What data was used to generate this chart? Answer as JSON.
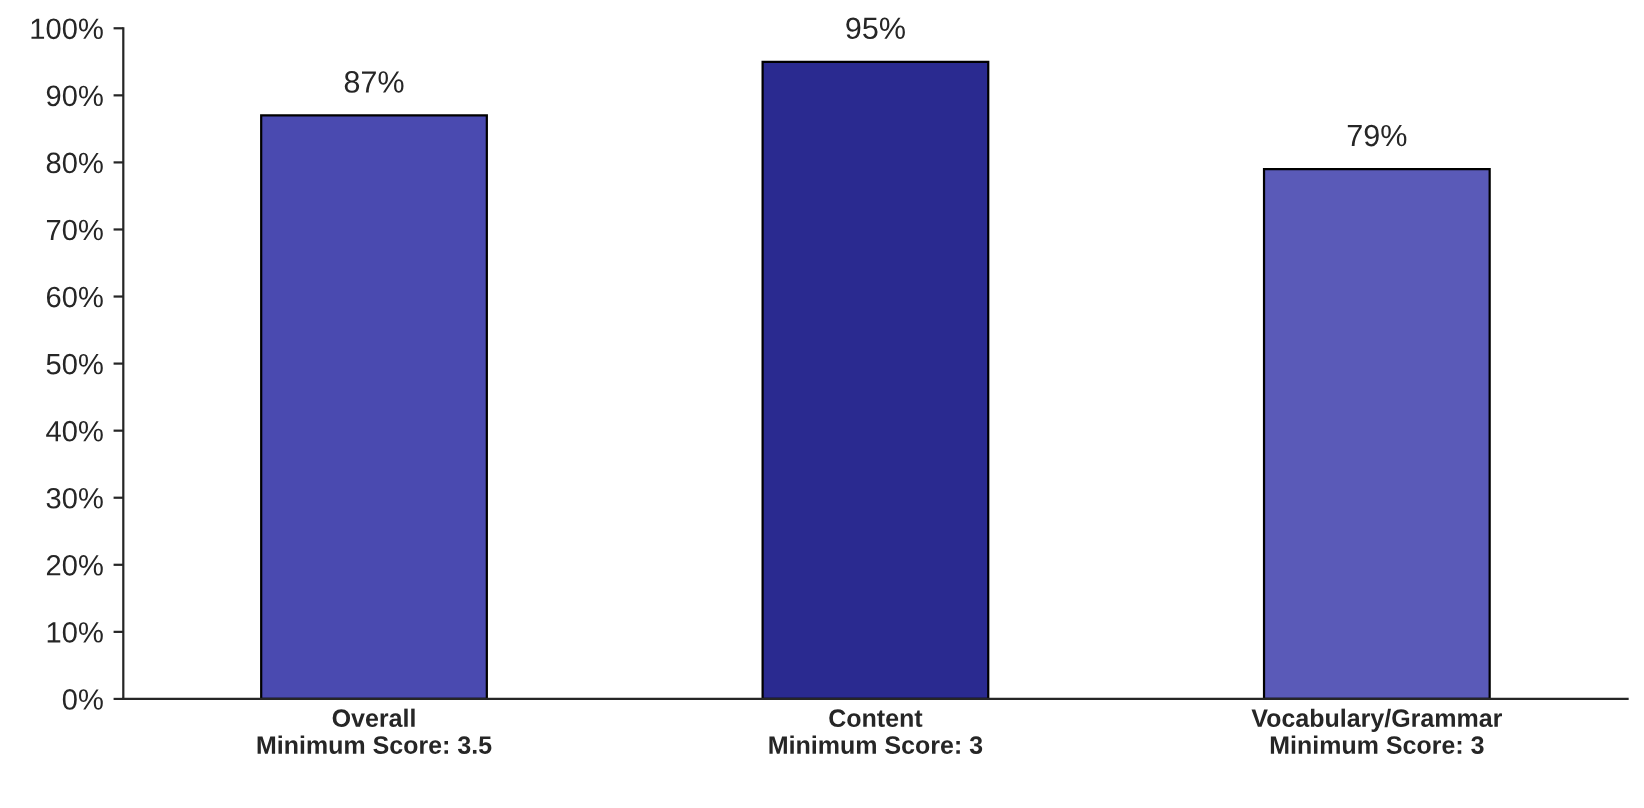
{
  "chart_data": {
    "type": "bar",
    "categories": [
      "Overall\nMinimum Score: 3.5",
      "Content\nMinimum Score: 3",
      "Vocabulary/Grammar\nMinimum Score: 3"
    ],
    "values": [
      87,
      95,
      79
    ],
    "colors": [
      "#4a4ab0",
      "#2a2a90",
      "#5a5ab8"
    ],
    "value_labels": [
      "87%",
      "95%",
      "79%"
    ],
    "ylim": [
      0,
      100
    ],
    "yticks": [
      {
        "value": 0,
        "label": "0%"
      },
      {
        "value": 10,
        "label": "10%"
      },
      {
        "value": 20,
        "label": "20%"
      },
      {
        "value": 30,
        "label": "30%"
      },
      {
        "value": 40,
        "label": "40%"
      },
      {
        "value": 50,
        "label": "50%"
      },
      {
        "value": 60,
        "label": "60%"
      },
      {
        "value": 70,
        "label": "70%"
      },
      {
        "value": 80,
        "label": "80%"
      },
      {
        "value": 90,
        "label": "90%"
      },
      {
        "value": 100,
        "label": "100%"
      }
    ],
    "grid": false,
    "legend": false
  }
}
